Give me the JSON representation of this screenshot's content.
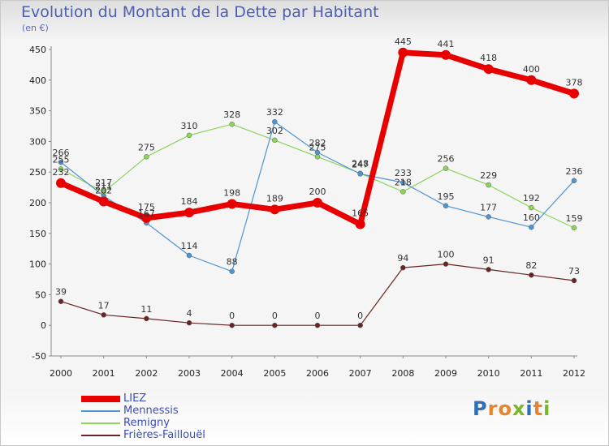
{
  "colors": {
    "title": "#4d5fb3"
  },
  "brand": {
    "letters": [
      {
        "ch": "P",
        "color": "#2e6fb8"
      },
      {
        "ch": "r",
        "color": "#e8842b"
      },
      {
        "ch": "o",
        "color": "#e8842b"
      },
      {
        "ch": "x",
        "color": "#78b62b"
      },
      {
        "ch": "i",
        "color": "#2e6fb8"
      },
      {
        "ch": "t",
        "color": "#e8842b"
      },
      {
        "ch": "i",
        "color": "#78b62b"
      }
    ]
  },
  "chart_data": {
    "type": "line",
    "title": "Evolution du Montant de la Dette par Habitant",
    "unit": "(en €)",
    "xlabel": "",
    "ylabel": "",
    "x": [
      "2000",
      "2001",
      "2002",
      "2003",
      "2004",
      "2005",
      "2006",
      "2007",
      "2008",
      "2009",
      "2010",
      "2011",
      "2012"
    ],
    "ylim": [
      -50,
      450
    ],
    "yticks": [
      -50,
      0,
      50,
      100,
      150,
      200,
      250,
      300,
      350,
      400,
      450
    ],
    "grid": false,
    "legend_position": "bottom-left",
    "series": [
      {
        "name": "LIEZ",
        "color": "#e80000",
        "width": 7,
        "marker": 6,
        "values": [
          232,
          202,
          175,
          184,
          198,
          189,
          200,
          165,
          445,
          441,
          418,
          400,
          378
        ],
        "labels": [
          "232",
          "202",
          "175",
          "184",
          "198",
          "189",
          "200",
          "165",
          "445",
          "441",
          "418",
          "400",
          "378"
        ]
      },
      {
        "name": "Mennessis",
        "color": "#4f95d1",
        "width": 1.2,
        "marker": 3,
        "values": [
          266,
          211,
          167,
          114,
          88,
          332,
          282,
          247,
          233,
          195,
          177,
          160,
          236
        ],
        "labels": [
          "266",
          "211",
          "167",
          "114",
          "88",
          "332",
          "282",
          "247",
          "233",
          "195",
          "177",
          "160",
          "236"
        ]
      },
      {
        "name": "Remigny",
        "color": "#8cd45a",
        "width": 1.2,
        "marker": 3,
        "values": [
          255,
          217,
          275,
          310,
          328,
          302,
          275,
          248,
          218,
          256,
          229,
          192,
          159
        ],
        "labels": [
          "255",
          "217",
          "275",
          "310",
          "328",
          "302",
          "275",
          "248",
          "218",
          "256",
          "229",
          "192",
          "159"
        ]
      },
      {
        "name": "Frières-Faillouël",
        "color": "#6b2424",
        "width": 1.2,
        "marker": 3,
        "values": [
          39,
          17,
          11,
          4,
          0,
          0,
          0,
          0,
          94,
          100,
          91,
          82,
          73
        ],
        "labels": [
          "39",
          "17",
          "11",
          "4",
          "0",
          "0",
          "0",
          "0",
          "94",
          "100",
          "91",
          "82",
          "73"
        ]
      }
    ]
  }
}
